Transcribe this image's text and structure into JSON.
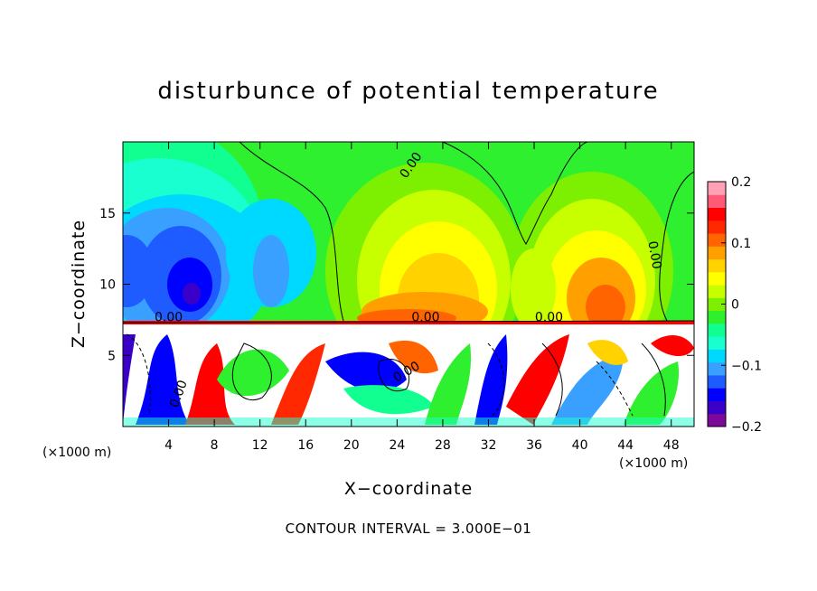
{
  "chart_data": {
    "type": "heatmap",
    "title": "disturbunce of potential temperature",
    "xlabel": "X−coordinate",
    "ylabel": "Z−coordinate",
    "x_unit_label": "(×1000 m)",
    "x_ticks": [
      4,
      8,
      12,
      16,
      20,
      24,
      28,
      32,
      36,
      40,
      44,
      48
    ],
    "y_ticks": [
      5,
      10,
      15
    ],
    "xlim": [
      0,
      50
    ],
    "ylim": [
      0,
      20
    ],
    "colorbar": {
      "ticks": [
        "0.2",
        "0.1",
        "0",
        "−0.1",
        "−0.2"
      ],
      "range": [
        -0.2,
        0.2
      ],
      "colors": [
        "#7b0a9a",
        "#3a00c8",
        "#0000ff",
        "#1e5cff",
        "#3aa0ff",
        "#00d9ff",
        "#19ffd0",
        "#10ff90",
        "#2ff02f",
        "#7cf000",
        "#c8ff00",
        "#ffff00",
        "#ffd200",
        "#ffa000",
        "#ff6400",
        "#ff2800",
        "#ff0000",
        "#ff5a78",
        "#ffa0b4"
      ]
    },
    "contour_labels": [
      {
        "text": "0.00",
        "x": 25.5,
        "y": 18.2,
        "rotate": -55
      },
      {
        "text": "0.00",
        "x": 46.2,
        "y": 12.0,
        "rotate": 80
      },
      {
        "text": "0.00",
        "x": 4.0,
        "y": 7.4,
        "rotate": 0
      },
      {
        "text": "0.00",
        "x": 26.5,
        "y": 7.4,
        "rotate": 0
      },
      {
        "text": "0.00",
        "x": 37.3,
        "y": 7.4,
        "rotate": 0
      },
      {
        "text": "0.00",
        "x": 25.0,
        "y": 3.6,
        "rotate": -30
      },
      {
        "text": "0.00",
        "x": 5.2,
        "y": 2.2,
        "rotate": -70
      }
    ],
    "footnote": "CONTOUR INTERVAL = 3.000E−01"
  }
}
